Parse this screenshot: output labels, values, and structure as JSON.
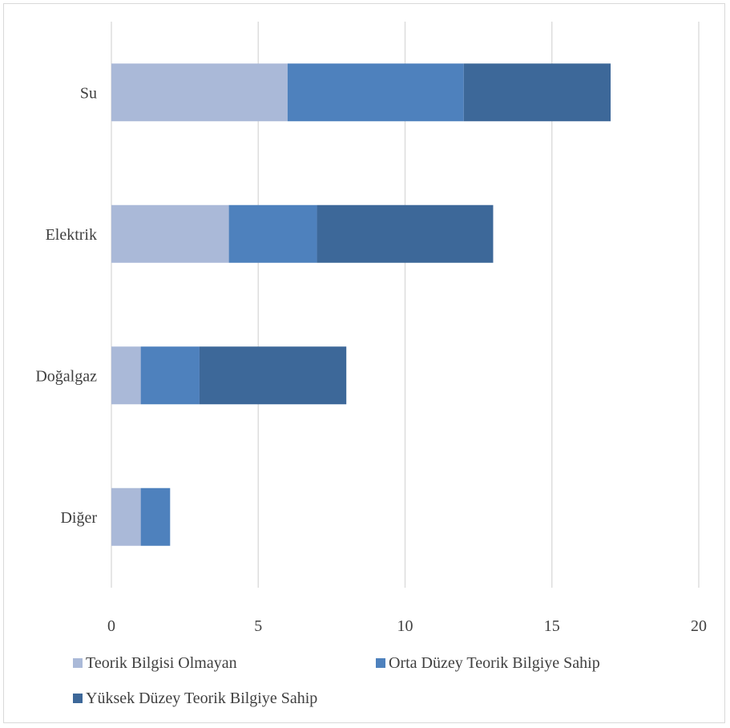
{
  "chart_data": {
    "type": "bar",
    "orientation": "horizontal",
    "stacked": true,
    "title": "",
    "xlabel": "",
    "ylabel": "",
    "categories": [
      "Su",
      "Elektrik",
      "Doğalgaz",
      "Diğer"
    ],
    "series": [
      {
        "name": "Teorik Bilgisi Olmayan",
        "color": "#aab9d8",
        "values": [
          6,
          4,
          1,
          1
        ]
      },
      {
        "name": "Orta Düzey Teorik Bilgiye Sahip",
        "color": "#4e81bd",
        "values": [
          6,
          3,
          2,
          1
        ]
      },
      {
        "name": "Yüksek Düzey Teorik Bilgiye Sahip",
        "color": "#3d6899",
        "values": [
          5,
          6,
          5,
          0
        ]
      }
    ],
    "xlim": [
      0,
      20
    ],
    "xticks": [
      "0",
      "5",
      "10",
      "15",
      "20"
    ],
    "grid": "vertical",
    "legend_position": "bottom"
  }
}
